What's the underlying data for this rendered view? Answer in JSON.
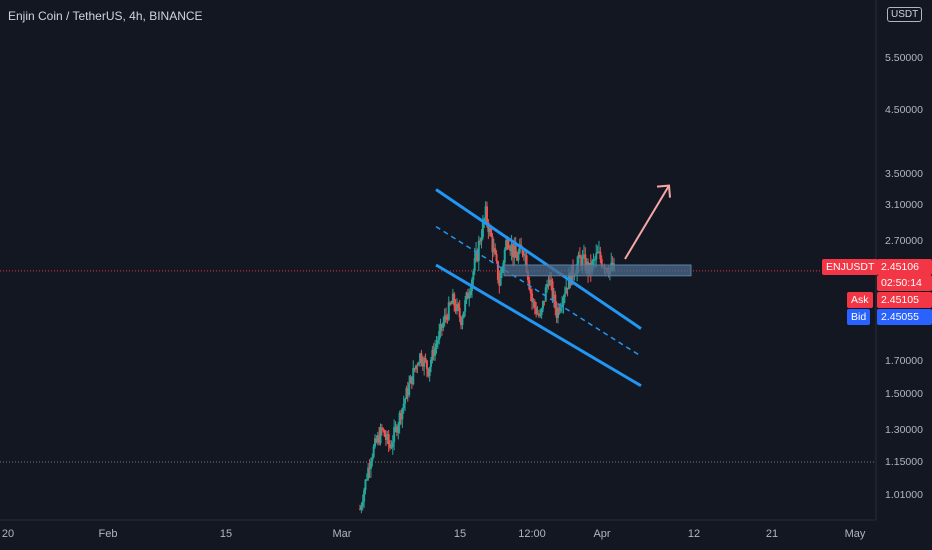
{
  "header": {
    "title": "Enjin Coin / TetherUS, 4h, BINANCE",
    "currency": "USDT"
  },
  "price_axis": {
    "labels": [
      "5.50000",
      "4.50000",
      "3.50000",
      "3.10000",
      "2.70000",
      "1.70000",
      "1.50000",
      "1.30000",
      "1.15000",
      "1.01000"
    ]
  },
  "time_axis": {
    "labels": [
      "20",
      "Feb",
      "15",
      "Mar",
      "15",
      "12:00",
      "Apr",
      "12",
      "21",
      "May"
    ]
  },
  "tags": {
    "symbol": "ENJUSDT",
    "last_price": "2.45106",
    "countdown": "02:50:14",
    "ask_label": "Ask",
    "ask_value": "2.45105",
    "bid_label": "Bid",
    "bid_value": "2.45055"
  },
  "colors": {
    "background": "#131722",
    "up": "#26a69a",
    "down": "#ef5350",
    "channel": "#2196f3",
    "arrow": "#f7a6a6",
    "last_price": "#f23645",
    "bid": "#2962ff"
  },
  "chart_data": {
    "type": "candlestick",
    "symbol": "ENJUSDT",
    "interval": "4h",
    "exchange": "BINANCE",
    "y_ticks": [
      5.5,
      4.5,
      3.5,
      3.1,
      2.7,
      1.7,
      1.5,
      1.3,
      1.15,
      1.01
    ],
    "x_ticks": [
      "20",
      "Feb",
      "15",
      "Mar",
      "15",
      "12:00",
      "Apr",
      "12",
      "21",
      "May"
    ],
    "last_price": 2.45106,
    "support_level": 1.15,
    "close_path": [
      [
        0,
        0.95
      ],
      [
        4,
        1.18
      ],
      [
        8,
        1.3
      ],
      [
        11,
        1.22
      ],
      [
        13,
        1.3
      ],
      [
        16,
        1.45
      ],
      [
        19,
        1.6
      ],
      [
        22,
        1.75
      ],
      [
        25,
        1.65
      ],
      [
        28,
        1.85
      ],
      [
        31,
        2.05
      ],
      [
        34,
        2.2
      ],
      [
        37,
        2.05
      ],
      [
        40,
        2.3
      ],
      [
        43,
        2.6
      ],
      [
        46,
        3.0
      ],
      [
        49,
        2.6
      ],
      [
        51,
        2.35
      ],
      [
        54,
        2.75
      ],
      [
        57,
        2.55
      ],
      [
        60,
        2.65
      ],
      [
        63,
        2.2
      ],
      [
        66,
        2.05
      ],
      [
        69,
        2.4
      ],
      [
        72,
        2.1
      ],
      [
        75,
        2.3
      ],
      [
        78,
        2.45
      ],
      [
        81,
        2.55
      ],
      [
        84,
        2.45
      ],
      [
        87,
        2.58
      ],
      [
        90,
        2.5
      ],
      [
        93,
        2.45106
      ]
    ],
    "drawings": {
      "channel_upper": [
        [
          3.3,
          2.3
        ],
        [
          2.4,
          1.97
        ]
      ],
      "channel_mid": [
        [
          2.86,
          2.62
        ],
        [
          2.1,
          1.74
        ]
      ],
      "channel_lower": [
        [
          2.5,
          2.28
        ],
        [
          1.9,
          1.55
        ]
      ],
      "resistance_zone": [
        2.41,
        2.5
      ],
      "target_arrow": [
        2.55,
        3.35
      ]
    }
  }
}
